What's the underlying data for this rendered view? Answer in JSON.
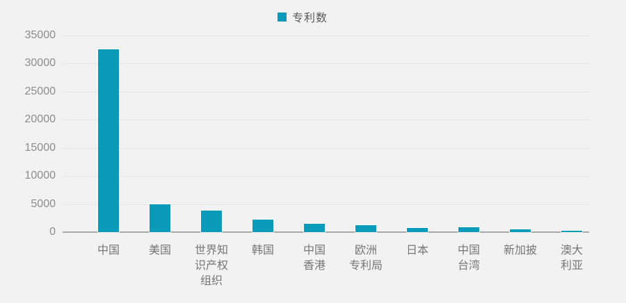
{
  "chart_data": {
    "type": "bar",
    "title": "",
    "xlabel": "",
    "ylabel": "",
    "legend": {
      "label": "专利数",
      "position": "top-center"
    },
    "categories": [
      "中国",
      "美国",
      "世界知识产权组织",
      "韩国",
      "中国香港",
      "欧洲专利局",
      "日本",
      "中国台湾",
      "新加披",
      "澳大利亚"
    ],
    "category_label_lines": [
      [
        "中国"
      ],
      [
        "美国"
      ],
      [
        "世界知",
        "识产权",
        "组织"
      ],
      [
        "韩国"
      ],
      [
        "中国",
        "香港"
      ],
      [
        "欧洲",
        "专利局"
      ],
      [
        "日本"
      ],
      [
        "中国",
        "台湾"
      ],
      [
        "新加披"
      ],
      [
        "澳大",
        "利亚"
      ]
    ],
    "series": [
      {
        "name": "专利数",
        "values": [
          32500,
          4900,
          3800,
          2250,
          1500,
          1250,
          800,
          850,
          550,
          250
        ]
      }
    ],
    "ylim": [
      0,
      35000
    ],
    "yticks": [
      0,
      5000,
      10000,
      15000,
      20000,
      25000,
      30000,
      35000
    ],
    "grid": true,
    "colors": {
      "bar": "#0b9bba",
      "background": "#f2f2f3",
      "gridline": "#e4e4e5",
      "axis_line": "#a9a9a9",
      "y_tick_label": "#8c8c8c",
      "x_tick_label": "#767676",
      "legend_text": "#595959"
    }
  }
}
